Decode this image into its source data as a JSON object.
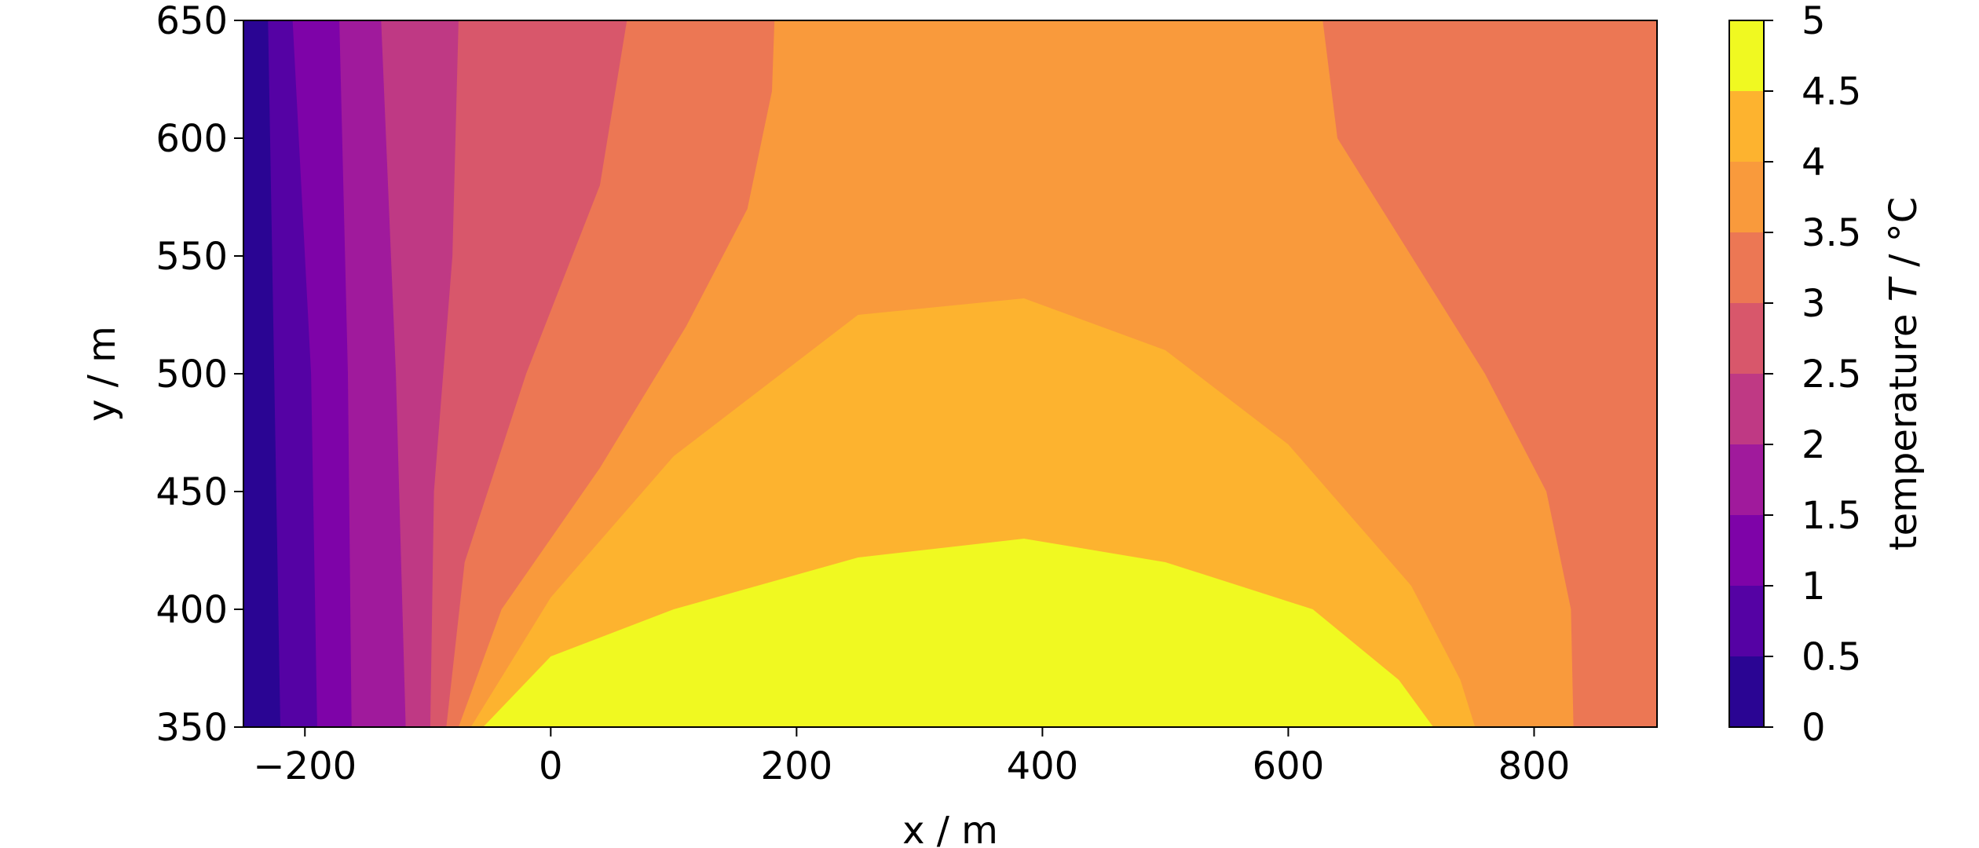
{
  "chart_data": {
    "type": "contour",
    "xlabel": "x / m",
    "ylabel": "y / m",
    "colorbar_label": "temperature T / °C",
    "colorbar_label_parts": {
      "prefix": "temperature ",
      "symbol": "T",
      "suffix": " / °C"
    },
    "xlim": [
      -250,
      900
    ],
    "ylim": [
      350,
      650
    ],
    "x_ticks": [
      -200,
      0,
      200,
      400,
      600,
      800
    ],
    "x_tick_labels": [
      "−200",
      "0",
      "200",
      "400",
      "600",
      "800"
    ],
    "y_ticks": [
      350,
      400,
      450,
      500,
      550,
      600,
      650
    ],
    "y_tick_labels": [
      "350",
      "400",
      "450",
      "500",
      "550",
      "600",
      "650"
    ],
    "levels": [
      0,
      0.5,
      1,
      1.5,
      2,
      2.5,
      3,
      3.5,
      4,
      4.5,
      5
    ],
    "level_labels": [
      "0",
      "0.5",
      "1",
      "1.5",
      "2",
      "2.5",
      "3",
      "3.5",
      "4",
      "4.5",
      "5"
    ],
    "colormap": "plasma",
    "level_colors": [
      "#2a0593",
      "#5502a4",
      "#7e03a8",
      "#a01a9c",
      "#bf3984",
      "#d8576b",
      "#ec7754",
      "#f99a3c",
      "#fdb32f",
      "#f0f921"
    ],
    "bands": [
      {
        "range": [
          0,
          0.5
        ],
        "left_edge": [
          [
            -250,
            350
          ],
          [
            -250,
            650
          ]
        ],
        "right_edge": [
          [
            -220,
            350
          ],
          [
            -230,
            650
          ]
        ]
      },
      {
        "range": [
          0.5,
          1
        ],
        "right_edge": [
          [
            -190,
            350
          ],
          [
            -195,
            500
          ],
          [
            -210,
            650
          ]
        ]
      },
      {
        "range": [
          1,
          1.5
        ],
        "right_edge": [
          [
            -162,
            350
          ],
          [
            -165,
            500
          ],
          [
            -172,
            650
          ]
        ]
      },
      {
        "range": [
          1.5,
          2
        ],
        "right_edge": [
          [
            -118,
            350
          ],
          [
            -126,
            500
          ],
          [
            -138,
            650
          ]
        ]
      },
      {
        "range": [
          2,
          2.5
        ],
        "right_edge": [
          [
            -98,
            350
          ],
          [
            -95,
            450
          ],
          [
            -80,
            550
          ],
          [
            -75,
            650
          ]
        ]
      },
      {
        "range": [
          2.5,
          3
        ],
        "right_edge": [
          [
            -85,
            350
          ],
          [
            -70,
            420
          ],
          [
            -20,
            500
          ],
          [
            40,
            580
          ],
          [
            62,
            650
          ]
        ]
      },
      {
        "range": [
          3,
          3.5
        ],
        "left_edge": [
          [
            -75,
            350
          ],
          [
            -40,
            400
          ],
          [
            40,
            460
          ],
          [
            110,
            520
          ],
          [
            160,
            570
          ],
          [
            180,
            620
          ],
          [
            182,
            650
          ]
        ],
        "right_edge": [
          [
            628,
            650
          ],
          [
            640,
            600
          ],
          [
            700,
            550
          ],
          [
            760,
            500
          ],
          [
            810,
            450
          ],
          [
            830,
            400
          ],
          [
            832,
            350
          ]
        ]
      },
      {
        "range": [
          3.5,
          4
        ],
        "boundary": [
          [
            -65,
            350
          ],
          [
            0,
            405
          ],
          [
            100,
            465
          ],
          [
            250,
            525
          ],
          [
            385,
            532
          ],
          [
            500,
            510
          ],
          [
            600,
            470
          ],
          [
            700,
            410
          ],
          [
            740,
            370
          ],
          [
            752,
            350
          ]
        ]
      },
      {
        "range": [
          4,
          4.5
        ],
        "boundary": [
          [
            -55,
            350
          ],
          [
            0,
            380
          ],
          [
            100,
            400
          ],
          [
            250,
            422
          ],
          [
            385,
            430
          ],
          [
            500,
            420
          ],
          [
            620,
            400
          ],
          [
            690,
            370
          ],
          [
            718,
            350
          ]
        ]
      },
      {
        "range": [
          4.5,
          5
        ],
        "core": "enclosed by the 4.5 boundary, peak near x=385"
      }
    ]
  }
}
